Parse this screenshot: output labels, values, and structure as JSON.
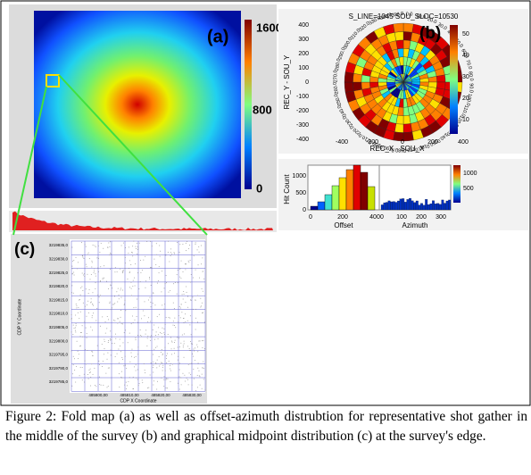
{
  "panel_a": {
    "label": "(a)",
    "colorbar_ticks": [
      "1600",
      "800",
      "0"
    ]
  },
  "panel_b": {
    "label": "(b)",
    "title": "S_LINE=1045 SOU_SLOC=10530",
    "y_label": "REC_Y - SOU_Y",
    "x_label": "REC_X - SOU_X",
    "yticks": [
      "400",
      "300",
      "200",
      "100",
      "0",
      "-100",
      "-200",
      "-300",
      "-400"
    ],
    "xticks": [
      "-400",
      "-200",
      "0",
      "200",
      "400"
    ],
    "colorbar_ticks": [
      "50",
      "40",
      "30",
      "20",
      "10"
    ],
    "angle_labels": [
      "0.0",
      "10.0",
      "20.0",
      "30.0",
      "40.0",
      "50.0",
      "60.0",
      "70.0",
      "80.0",
      "90.0",
      "100.0",
      "110.0",
      "120.0",
      "130.0",
      "140.0",
      "150.0",
      "160.0",
      "170.0",
      "180.0",
      "190.0",
      "200.0",
      "210.0",
      "220.0",
      "230.0",
      "240.0",
      "250.0",
      "260.0",
      "270.0",
      "280.0",
      "290.0",
      "300.0",
      "310.0",
      "320.0",
      "330.0",
      "340.0",
      "350.0"
    ],
    "hist_y_label": "Hit Count",
    "hist_yticks": [
      "1000",
      "500",
      "0"
    ],
    "offset_label": "Offset",
    "offset_xticks": [
      "0",
      "200",
      "400"
    ],
    "azimuth_label": "Azimuth",
    "azimuth_xticks": [
      "0",
      "100",
      "200",
      "300"
    ],
    "hist_colorbar_ticks": [
      "1000",
      "500"
    ]
  },
  "panel_c": {
    "label": "(c)",
    "y_label": "CDP Y Coordinate",
    "x_label": "CDP X Coordinate",
    "yticks": [
      "3219835,0",
      "3219830,0",
      "3219825,0",
      "3219820,0",
      "3219815,0",
      "3219810,0",
      "3219805,0",
      "3219800,0",
      "3219795,0",
      "3219790,0",
      "3219785,0"
    ],
    "xticks": [
      "485800,00",
      "485810,00",
      "485820,00",
      "485830,00"
    ]
  },
  "caption": "Figure 2: Fold map (a) as well as offset-azimuth distrubtion for representative shot gather in the middle of the survey (b) and graphical midpoint distribution (c) at the survey's edge."
}
